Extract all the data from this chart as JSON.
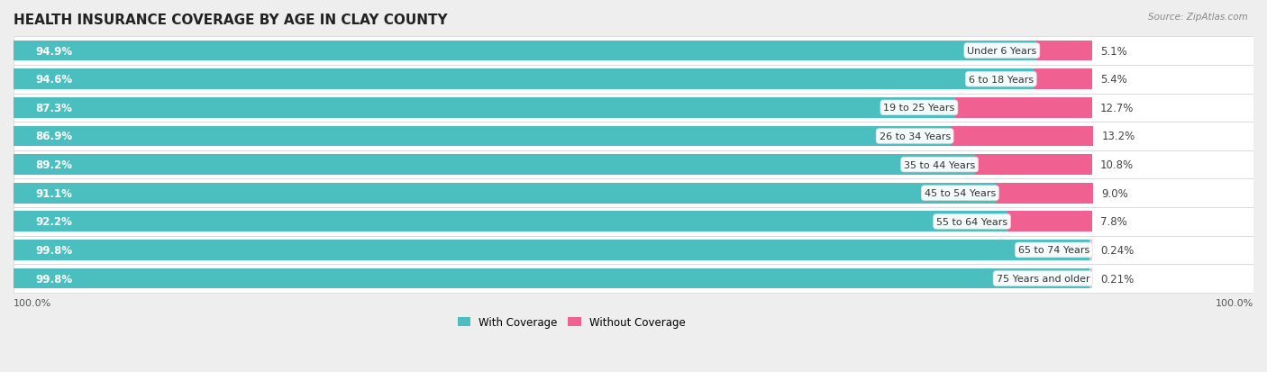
{
  "title": "HEALTH INSURANCE COVERAGE BY AGE IN CLAY COUNTY",
  "source": "Source: ZipAtlas.com",
  "categories": [
    "Under 6 Years",
    "6 to 18 Years",
    "19 to 25 Years",
    "26 to 34 Years",
    "35 to 44 Years",
    "45 to 54 Years",
    "55 to 64 Years",
    "65 to 74 Years",
    "75 Years and older"
  ],
  "with_coverage": [
    94.9,
    94.6,
    87.3,
    86.9,
    89.2,
    91.1,
    92.2,
    99.8,
    99.8
  ],
  "without_coverage": [
    5.1,
    5.4,
    12.7,
    13.2,
    10.8,
    9.0,
    7.8,
    0.24,
    0.21
  ],
  "with_coverage_labels": [
    "94.9%",
    "94.6%",
    "87.3%",
    "86.9%",
    "89.2%",
    "91.1%",
    "92.2%",
    "99.8%",
    "99.8%"
  ],
  "without_coverage_labels": [
    "5.1%",
    "5.4%",
    "12.7%",
    "13.2%",
    "10.8%",
    "9.0%",
    "7.8%",
    "0.24%",
    "0.21%"
  ],
  "color_with": "#4BBFBF",
  "color_without": "#F06090",
  "color_without_light": "#F4B8CC",
  "bg_color": "#eeeeee",
  "row_bg_color": "#f9f9f9",
  "title_fontsize": 11,
  "label_fontsize": 8.5,
  "legend_fontsize": 8.5,
  "bar_height": 0.72,
  "total_width": 100
}
